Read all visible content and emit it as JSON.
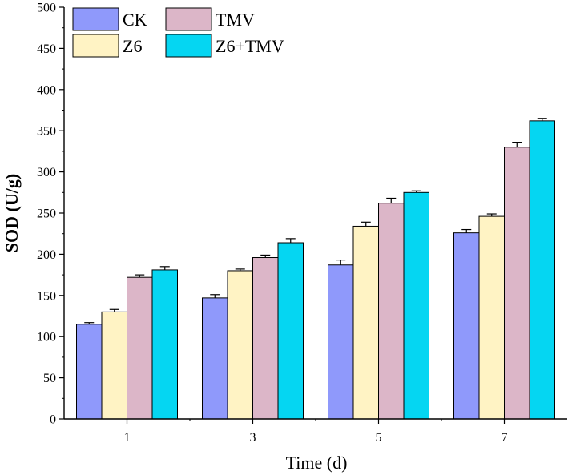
{
  "chart_data": {
    "type": "bar",
    "title": "",
    "xlabel": "Time (d)",
    "ylabel": "SOD (U/g)",
    "ylim": [
      0,
      500
    ],
    "yticks": [
      0,
      50,
      100,
      150,
      200,
      250,
      300,
      350,
      400,
      450,
      500
    ],
    "categories": [
      "1",
      "3",
      "5",
      "7"
    ],
    "legend_position": "top-left",
    "series": [
      {
        "name": "CK",
        "color": "#8f99fb",
        "values": [
          115,
          147,
          187,
          226
        ],
        "errors": [
          2,
          4,
          6,
          4
        ]
      },
      {
        "name": "Z6",
        "color": "#fff3c4",
        "values": [
          130,
          180,
          234,
          246
        ],
        "errors": [
          3,
          2,
          5,
          3
        ]
      },
      {
        "name": "TMV",
        "color": "#dcb6c8",
        "values": [
          172,
          196,
          262,
          330
        ],
        "errors": [
          3,
          3,
          6,
          6
        ]
      },
      {
        "name": "Z6+TMV",
        "color": "#05d6f2",
        "values": [
          181,
          214,
          275,
          362
        ],
        "errors": [
          4,
          5,
          2,
          3
        ]
      }
    ]
  }
}
